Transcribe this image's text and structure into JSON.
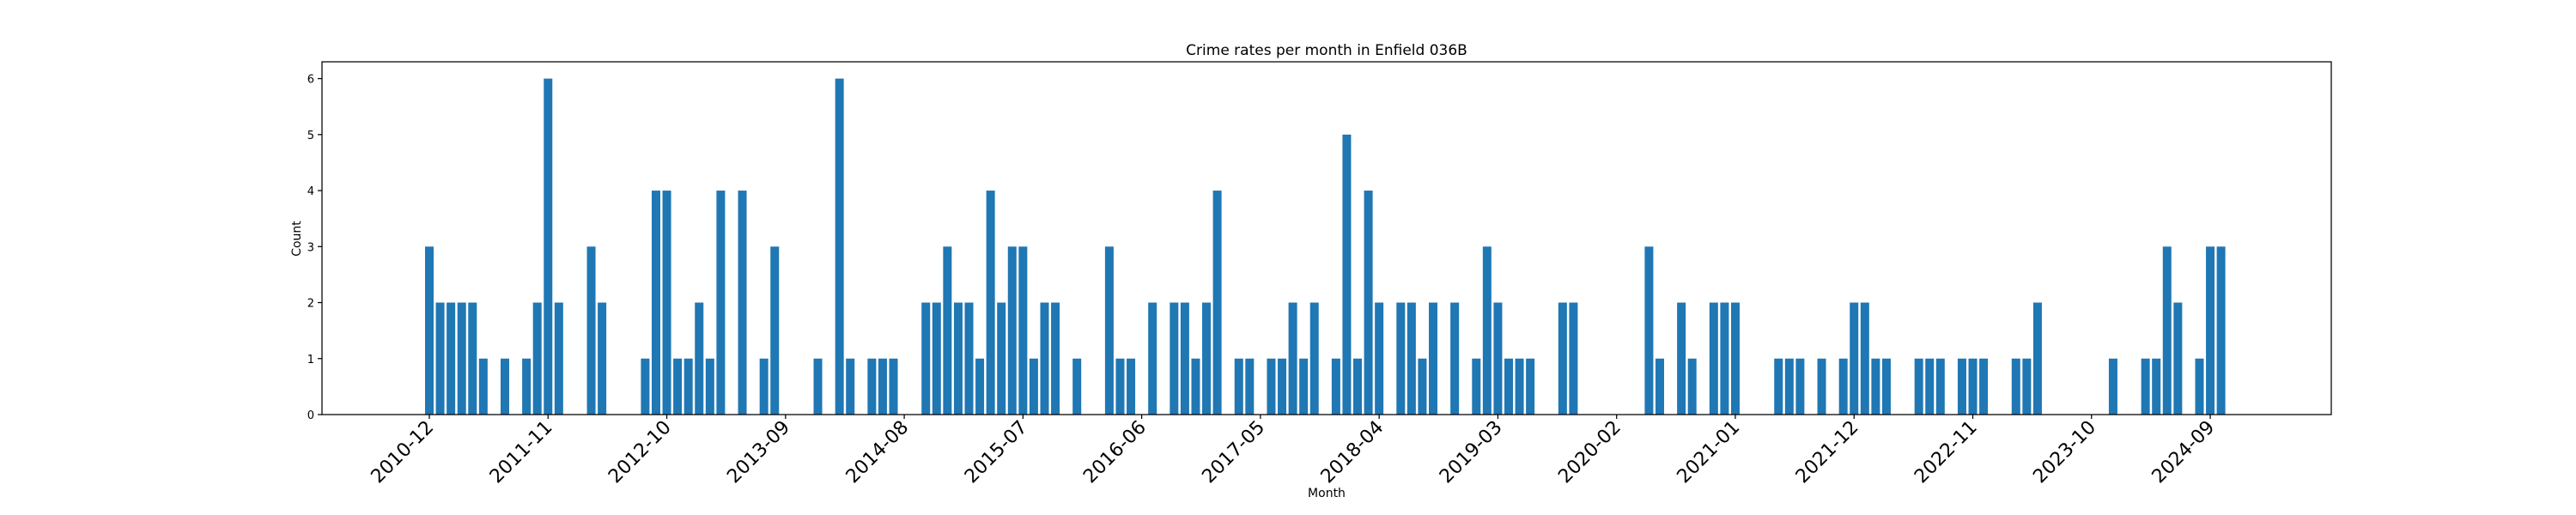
{
  "chart_data": {
    "type": "bar",
    "title": "Crime rates per month in Enfield 036B",
    "xlabel": "Month",
    "ylabel": "Count",
    "ylim": [
      0,
      6.3
    ],
    "yticks": [
      0,
      1,
      2,
      3,
      4,
      5,
      6
    ],
    "xticks": [
      "2010-12",
      "2011-11",
      "2012-10",
      "2013-09",
      "2014-08",
      "2015-07",
      "2016-06",
      "2017-05",
      "2018-04",
      "2019-03",
      "2020-02",
      "2021-01",
      "2021-12",
      "2022-11",
      "2023-10",
      "2024-09"
    ],
    "xtick_rotation": 45,
    "bar_color": "#1f77b4",
    "grid": false,
    "data": [
      [
        "2010-12",
        3
      ],
      [
        "2011-01",
        2
      ],
      [
        "2011-02",
        2
      ],
      [
        "2011-03",
        2
      ],
      [
        "2011-04",
        2
      ],
      [
        "2011-05",
        1
      ],
      [
        "2011-07",
        1
      ],
      [
        "2011-09",
        1
      ],
      [
        "2011-10",
        2
      ],
      [
        "2011-11",
        6
      ],
      [
        "2011-12",
        2
      ],
      [
        "2012-03",
        3
      ],
      [
        "2012-04",
        2
      ],
      [
        "2012-08",
        1
      ],
      [
        "2012-09",
        4
      ],
      [
        "2012-10",
        4
      ],
      [
        "2012-11",
        1
      ],
      [
        "2012-12",
        1
      ],
      [
        "2013-01",
        2
      ],
      [
        "2013-02",
        1
      ],
      [
        "2013-03",
        4
      ],
      [
        "2013-05",
        4
      ],
      [
        "2013-07",
        1
      ],
      [
        "2013-08",
        3
      ],
      [
        "2013-12",
        1
      ],
      [
        "2014-02",
        6
      ],
      [
        "2014-03",
        1
      ],
      [
        "2014-05",
        1
      ],
      [
        "2014-06",
        1
      ],
      [
        "2014-07",
        1
      ],
      [
        "2014-10",
        2
      ],
      [
        "2014-11",
        2
      ],
      [
        "2014-12",
        3
      ],
      [
        "2015-01",
        2
      ],
      [
        "2015-02",
        2
      ],
      [
        "2015-03",
        1
      ],
      [
        "2015-04",
        4
      ],
      [
        "2015-05",
        2
      ],
      [
        "2015-06",
        3
      ],
      [
        "2015-07",
        3
      ],
      [
        "2015-08",
        1
      ],
      [
        "2015-09",
        2
      ],
      [
        "2015-10",
        2
      ],
      [
        "2015-12",
        1
      ],
      [
        "2016-03",
        3
      ],
      [
        "2016-04",
        1
      ],
      [
        "2016-05",
        1
      ],
      [
        "2016-07",
        2
      ],
      [
        "2016-09",
        2
      ],
      [
        "2016-10",
        2
      ],
      [
        "2016-11",
        1
      ],
      [
        "2016-12",
        2
      ],
      [
        "2017-01",
        4
      ],
      [
        "2017-03",
        1
      ],
      [
        "2017-04",
        1
      ],
      [
        "2017-06",
        1
      ],
      [
        "2017-07",
        1
      ],
      [
        "2017-08",
        2
      ],
      [
        "2017-09",
        1
      ],
      [
        "2017-10",
        2
      ],
      [
        "2017-12",
        1
      ],
      [
        "2018-01",
        5
      ],
      [
        "2018-02",
        1
      ],
      [
        "2018-03",
        4
      ],
      [
        "2018-04",
        2
      ],
      [
        "2018-06",
        2
      ],
      [
        "2018-07",
        2
      ],
      [
        "2018-08",
        1
      ],
      [
        "2018-09",
        2
      ],
      [
        "2018-11",
        2
      ],
      [
        "2019-01",
        1
      ],
      [
        "2019-02",
        3
      ],
      [
        "2019-03",
        2
      ],
      [
        "2019-04",
        1
      ],
      [
        "2019-05",
        1
      ],
      [
        "2019-06",
        1
      ],
      [
        "2019-09",
        2
      ],
      [
        "2019-10",
        2
      ],
      [
        "2020-05",
        3
      ],
      [
        "2020-06",
        1
      ],
      [
        "2020-08",
        2
      ],
      [
        "2020-09",
        1
      ],
      [
        "2020-11",
        2
      ],
      [
        "2020-12",
        2
      ],
      [
        "2021-01",
        2
      ],
      [
        "2021-05",
        1
      ],
      [
        "2021-06",
        1
      ],
      [
        "2021-07",
        1
      ],
      [
        "2021-09",
        1
      ],
      [
        "2021-11",
        1
      ],
      [
        "2021-12",
        2
      ],
      [
        "2022-01",
        2
      ],
      [
        "2022-02",
        1
      ],
      [
        "2022-03",
        1
      ],
      [
        "2022-06",
        1
      ],
      [
        "2022-07",
        1
      ],
      [
        "2022-08",
        1
      ],
      [
        "2022-10",
        1
      ],
      [
        "2022-11",
        1
      ],
      [
        "2022-12",
        1
      ],
      [
        "2023-03",
        1
      ],
      [
        "2023-04",
        1
      ],
      [
        "2023-05",
        2
      ],
      [
        "2023-12",
        1
      ],
      [
        "2024-03",
        1
      ],
      [
        "2024-04",
        1
      ],
      [
        "2024-05",
        3
      ],
      [
        "2024-06",
        2
      ],
      [
        "2024-08",
        1
      ],
      [
        "2024-09",
        3
      ],
      [
        "2024-10",
        3
      ]
    ]
  }
}
